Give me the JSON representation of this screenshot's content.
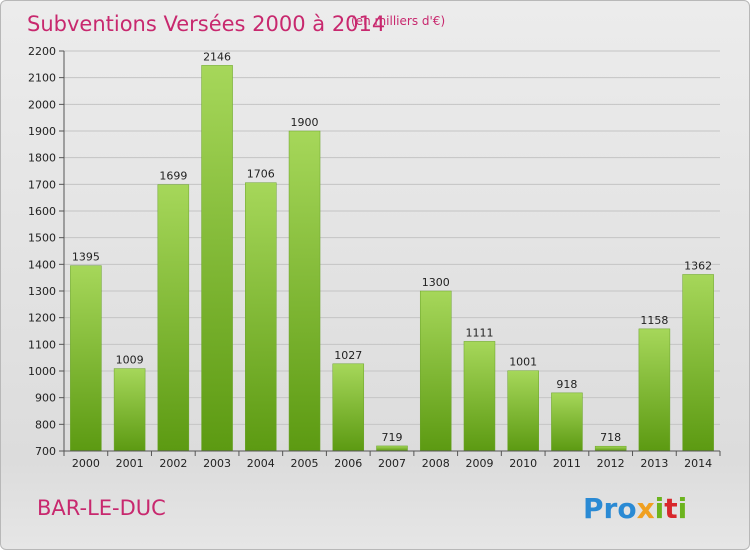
{
  "header": {
    "title": "Subventions Versées 2000 à 2014",
    "unit_note": "(en milliers d'€)"
  },
  "footer": {
    "place_name": "BAR-LE-DUC",
    "brand": {
      "p1": "Pro",
      "x": "x",
      "i1": "i",
      "t": "t",
      "i2": "i"
    }
  },
  "colors": {
    "title": "#c8286e",
    "place": "#c8286e",
    "bar_top": "#a6d75a",
    "bar_bottom": "#5c9a12",
    "brand_blue": "#2a8ad4",
    "brand_orange": "#f0a020",
    "brand_green": "#6cb41e",
    "brand_red": "#d8282c"
  },
  "chart_data": {
    "type": "bar",
    "categories": [
      "2000",
      "2001",
      "2002",
      "2003",
      "2004",
      "2005",
      "2006",
      "2007",
      "2008",
      "2009",
      "2010",
      "2011",
      "2012",
      "2013",
      "2014"
    ],
    "values": [
      1395,
      1009,
      1699,
      2146,
      1706,
      1900,
      1027,
      719,
      1300,
      1111,
      1001,
      918,
      718,
      1158,
      1362
    ],
    "ylim": [
      700,
      2200
    ],
    "yticks": [
      700,
      800,
      900,
      1000,
      1100,
      1200,
      1300,
      1400,
      1500,
      1600,
      1700,
      1800,
      1900,
      2000,
      2100,
      2200
    ],
    "grid": true,
    "legend": "none"
  }
}
